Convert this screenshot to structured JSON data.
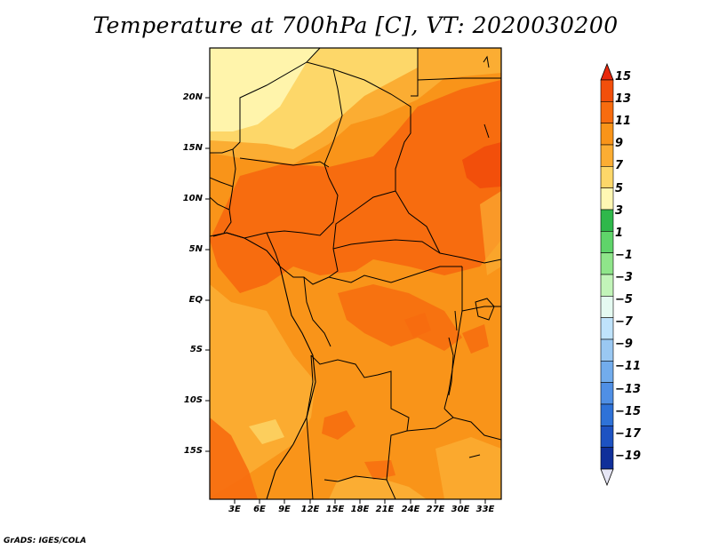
{
  "title": "Temperature at 700hPa [C], VT: 2020030200",
  "credit": "GrADS: IGES/COLA",
  "map": {
    "lat_labels": [
      "20N",
      "15N",
      "10N",
      "5N",
      "EQ",
      "5S",
      "10S",
      "15S"
    ],
    "lon_labels": [
      "3E",
      "6E",
      "9E",
      "12E",
      "15E",
      "18E",
      "21E",
      "24E",
      "27E",
      "30E",
      "33E"
    ]
  },
  "colorbar": {
    "labels": [
      "15",
      "13",
      "11",
      "9",
      "7",
      "5",
      "3",
      "1",
      "−1",
      "−3",
      "−5",
      "−7",
      "−9",
      "−11",
      "−13",
      "−15",
      "−17",
      "−19"
    ],
    "colors": [
      "#e8280c",
      "#f24f0b",
      "#f76c0f",
      "#f99419",
      "#fbad33",
      "#fdd769",
      "#fff7b3",
      "#2fb84b",
      "#5fd46a",
      "#8fe58a",
      "#c2f4b9",
      "#e5faf1",
      "#bfe3fb",
      "#9ac8f2",
      "#72acec",
      "#4f8fe5",
      "#2e72d8",
      "#1d52c2",
      "#0f2f9a",
      "#0a1270"
    ]
  }
}
